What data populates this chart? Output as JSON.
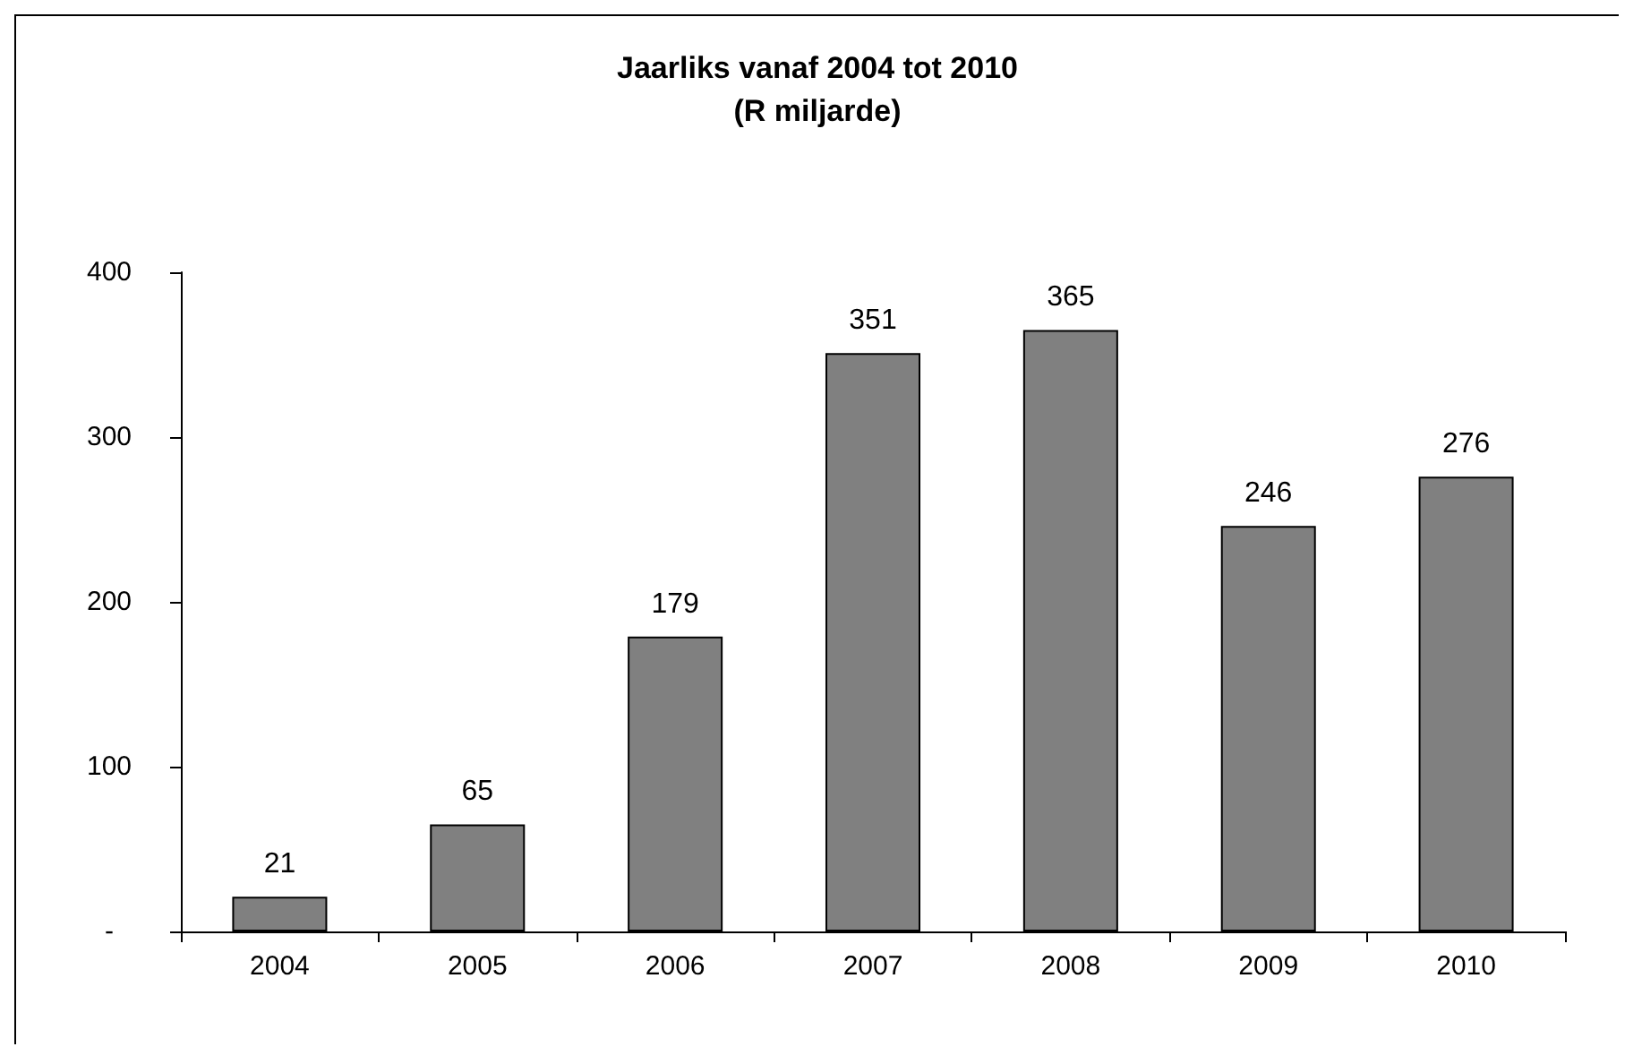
{
  "chart_data": {
    "type": "bar",
    "title": "Jaarliks vanaf 2004 tot 2010\n(R miljarde)",
    "categories": [
      "2004",
      "2005",
      "2006",
      "2007",
      "2008",
      "2009",
      "2010"
    ],
    "values": [
      21,
      65,
      179,
      351,
      365,
      246,
      276
    ],
    "color": "#808080",
    "ylim": [
      0,
      400
    ],
    "yticks": [
      {
        "value": 0,
        "label": "-"
      },
      100,
      200,
      300,
      400
    ],
    "data_labels": true,
    "grid": false
  }
}
